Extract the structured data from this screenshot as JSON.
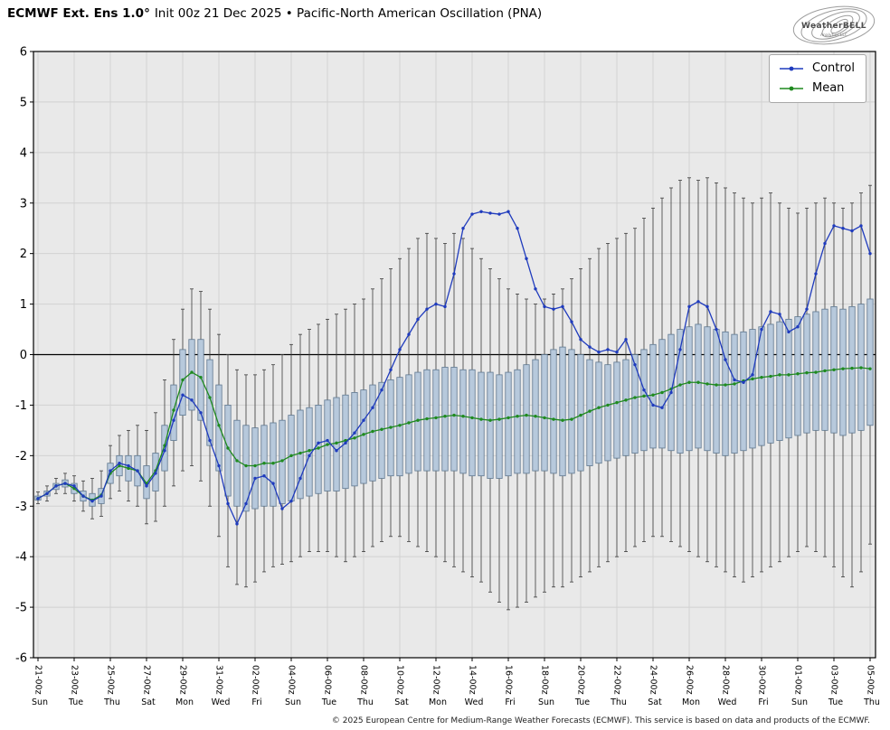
{
  "header": {
    "title_bold": "ECMWF Ext. Ens 1.0°",
    "title_rest": "Init 00z 21 Dec 2025 • Pacific-North American Oscillation (PNA)"
  },
  "logo": {
    "text": "WeatherBELL",
    "subtext": "Analytics LLC"
  },
  "legend": {
    "control_label": "Control",
    "mean_label": "Mean"
  },
  "footer": {
    "copyright": "© 2025 European Centre for Medium-Range Weather Forecasts (ECMWF). This service is based on data and products of the ECMWF."
  },
  "colors": {
    "control": "#1f3bbd",
    "mean": "#1f8a1f",
    "box_fill": "#b7c9dc",
    "box_stroke": "#5f7890",
    "whisker": "#3a3a3a",
    "plot_bg": "#e9e9e9",
    "grid": "#d2d2d2",
    "zero_line": "#000000",
    "frame": "#000000"
  },
  "chart_data": {
    "type": "line",
    "subtype": "ensemble-box-whisker-timeseries",
    "title": "ECMWF Ext. Ens 1.0° Init 00z 21 Dec 2025 • Pacific-North American Oscillation (PNA)",
    "xlabel": "",
    "ylabel": "",
    "ylim": [
      -6,
      6
    ],
    "y_ticks": [
      -6,
      -5,
      -4,
      -3,
      -2,
      -1,
      0,
      1,
      2,
      3,
      4,
      5,
      6
    ],
    "x_step_hours": 12,
    "grid": true,
    "legend_position": "upper right",
    "x_tick_positions": [
      0,
      4,
      8,
      12,
      16,
      20,
      24,
      28,
      32,
      36,
      40,
      44,
      48,
      52,
      56,
      60,
      64,
      68,
      72,
      76,
      80,
      84,
      88,
      92
    ],
    "x_tick_labels": [
      "21-00z",
      "23-00z",
      "25-00z",
      "27-00z",
      "29-00z",
      "31-00z",
      "02-00z",
      "04-00z",
      "06-00z",
      "08-00z",
      "10-00z",
      "12-00z",
      "14-00z",
      "16-00z",
      "18-00z",
      "20-00z",
      "22-00z",
      "24-00z",
      "26-00z",
      "28-00z",
      "30-00z",
      "01-00z",
      "03-00z",
      "05-00z"
    ],
    "x_tick_weekdays": [
      "Sun",
      "Tue",
      "Thu",
      "Sat",
      "Mon",
      "Wed",
      "Fri",
      "Sun",
      "Tue",
      "Thu",
      "Sat",
      "Mon",
      "Wed",
      "Fri",
      "Sun",
      "Tue",
      "Thu",
      "Sat",
      "Mon",
      "Wed",
      "Fri",
      "Sun",
      "Tue",
      "Thu"
    ],
    "series": [
      {
        "name": "Control",
        "values": [
          -2.85,
          -2.75,
          -2.6,
          -2.55,
          -2.6,
          -2.8,
          -2.9,
          -2.8,
          -2.3,
          -2.15,
          -2.2,
          -2.3,
          -2.6,
          -2.35,
          -1.9,
          -1.3,
          -0.8,
          -0.9,
          -1.15,
          -1.7,
          -2.2,
          -2.95,
          -3.35,
          -2.95,
          -2.45,
          -2.4,
          -2.55,
          -3.05,
          -2.9,
          -2.45,
          -2.0,
          -1.75,
          -1.7,
          -1.9,
          -1.75,
          -1.55,
          -1.3,
          -1.05,
          -0.7,
          -0.3,
          0.1,
          0.4,
          0.7,
          0.9,
          1.0,
          0.95,
          1.6,
          2.5,
          2.78,
          2.83,
          2.8,
          2.78,
          2.83,
          2.5,
          1.9,
          1.3,
          0.95,
          0.9,
          0.95,
          0.65,
          0.3,
          0.15,
          0.05,
          0.1,
          0.05,
          0.3,
          -0.2,
          -0.7,
          -1.0,
          -1.05,
          -0.75,
          0.1,
          0.95,
          1.05,
          0.95,
          0.5,
          -0.1,
          -0.5,
          -0.55,
          -0.4,
          0.5,
          0.85,
          0.8,
          0.45,
          0.55,
          0.9,
          1.6,
          2.2,
          2.55,
          2.5,
          2.45,
          2.55,
          2.0
        ]
      },
      {
        "name": "Mean",
        "values": [
          -2.85,
          -2.75,
          -2.6,
          -2.55,
          -2.65,
          -2.8,
          -2.88,
          -2.78,
          -2.35,
          -2.2,
          -2.25,
          -2.3,
          -2.55,
          -2.3,
          -1.8,
          -1.1,
          -0.5,
          -0.35,
          -0.45,
          -0.85,
          -1.4,
          -1.85,
          -2.1,
          -2.2,
          -2.2,
          -2.15,
          -2.15,
          -2.1,
          -2.0,
          -1.95,
          -1.9,
          -1.85,
          -1.78,
          -1.75,
          -1.7,
          -1.65,
          -1.58,
          -1.52,
          -1.48,
          -1.44,
          -1.4,
          -1.35,
          -1.3,
          -1.27,
          -1.25,
          -1.22,
          -1.2,
          -1.22,
          -1.25,
          -1.28,
          -1.3,
          -1.28,
          -1.25,
          -1.22,
          -1.2,
          -1.22,
          -1.25,
          -1.28,
          -1.3,
          -1.28,
          -1.2,
          -1.12,
          -1.05,
          -1.0,
          -0.95,
          -0.9,
          -0.85,
          -0.82,
          -0.8,
          -0.75,
          -0.68,
          -0.6,
          -0.55,
          -0.55,
          -0.58,
          -0.6,
          -0.6,
          -0.58,
          -0.52,
          -0.48,
          -0.45,
          -0.43,
          -0.4,
          -0.4,
          -0.38,
          -0.36,
          -0.35,
          -0.32,
          -0.3,
          -0.28,
          -0.27,
          -0.26,
          -0.28
        ]
      }
    ],
    "boxes": {
      "low": [
        -2.95,
        -2.9,
        -2.75,
        -2.75,
        -2.9,
        -3.1,
        -3.25,
        -3.2,
        -2.85,
        -2.7,
        -2.9,
        -3.0,
        -3.35,
        -3.3,
        -3.0,
        -2.6,
        -2.3,
        -2.2,
        -2.5,
        -3.0,
        -3.6,
        -4.2,
        -4.55,
        -4.6,
        -4.5,
        -4.3,
        -4.2,
        -4.15,
        -4.1,
        -4.0,
        -3.9,
        -3.9,
        -3.9,
        -4.0,
        -4.1,
        -4.0,
        -3.9,
        -3.8,
        -3.7,
        -3.6,
        -3.6,
        -3.7,
        -3.8,
        -3.9,
        -4.0,
        -4.1,
        -4.2,
        -4.3,
        -4.4,
        -4.5,
        -4.7,
        -4.9,
        -5.05,
        -5.0,
        -4.9,
        -4.8,
        -4.7,
        -4.6,
        -4.6,
        -4.5,
        -4.4,
        -4.3,
        -4.2,
        -4.1,
        -4.0,
        -3.9,
        -3.8,
        -3.7,
        -3.6,
        -3.6,
        -3.7,
        -3.8,
        -3.9,
        -4.0,
        -4.1,
        -4.2,
        -4.3,
        -4.4,
        -4.5,
        -4.4,
        -4.3,
        -4.2,
        -4.1,
        -4.0,
        -3.9,
        -3.8,
        -3.9,
        -4.0,
        -4.2,
        -4.4,
        -4.6,
        -4.3,
        -3.75
      ],
      "q1": [
        -2.88,
        -2.8,
        -2.67,
        -2.62,
        -2.75,
        -2.9,
        -3.0,
        -2.95,
        -2.55,
        -2.4,
        -2.5,
        -2.6,
        -2.85,
        -2.7,
        -2.3,
        -1.7,
        -1.2,
        -1.1,
        -1.3,
        -1.8,
        -2.3,
        -2.8,
        -3.0,
        -3.1,
        -3.05,
        -3.0,
        -3.0,
        -2.95,
        -2.9,
        -2.85,
        -2.8,
        -2.75,
        -2.7,
        -2.7,
        -2.65,
        -2.6,
        -2.55,
        -2.5,
        -2.45,
        -2.4,
        -2.4,
        -2.35,
        -2.3,
        -2.3,
        -2.3,
        -2.3,
        -2.3,
        -2.35,
        -2.4,
        -2.4,
        -2.45,
        -2.45,
        -2.4,
        -2.35,
        -2.35,
        -2.3,
        -2.3,
        -2.35,
        -2.4,
        -2.35,
        -2.3,
        -2.2,
        -2.15,
        -2.1,
        -2.05,
        -2.0,
        -1.95,
        -1.9,
        -1.85,
        -1.85,
        -1.9,
        -1.95,
        -1.9,
        -1.85,
        -1.9,
        -1.95,
        -2.0,
        -1.95,
        -1.9,
        -1.85,
        -1.8,
        -1.75,
        -1.7,
        -1.65,
        -1.6,
        -1.55,
        -1.5,
        -1.5,
        -1.55,
        -1.6,
        -1.55,
        -1.5,
        -1.4
      ],
      "q3": [
        -2.8,
        -2.7,
        -2.55,
        -2.48,
        -2.55,
        -2.7,
        -2.75,
        -2.65,
        -2.15,
        -2.0,
        -2.0,
        -2.0,
        -2.2,
        -1.95,
        -1.4,
        -0.6,
        0.1,
        0.3,
        0.3,
        -0.1,
        -0.6,
        -1.0,
        -1.3,
        -1.4,
        -1.45,
        -1.4,
        -1.35,
        -1.3,
        -1.2,
        -1.1,
        -1.05,
        -1.0,
        -0.9,
        -0.85,
        -0.8,
        -0.75,
        -0.7,
        -0.6,
        -0.55,
        -0.5,
        -0.45,
        -0.4,
        -0.35,
        -0.3,
        -0.3,
        -0.25,
        -0.25,
        -0.3,
        -0.3,
        -0.35,
        -0.35,
        -0.4,
        -0.35,
        -0.3,
        -0.2,
        -0.1,
        0.0,
        0.1,
        0.15,
        0.1,
        0.0,
        -0.1,
        -0.15,
        -0.2,
        -0.15,
        -0.1,
        0.0,
        0.1,
        0.2,
        0.3,
        0.4,
        0.5,
        0.55,
        0.6,
        0.55,
        0.5,
        0.45,
        0.4,
        0.45,
        0.5,
        0.55,
        0.6,
        0.65,
        0.7,
        0.75,
        0.8,
        0.85,
        0.9,
        0.95,
        0.9,
        0.95,
        1.0,
        1.1
      ],
      "high": [
        -2.72,
        -2.6,
        -2.45,
        -2.35,
        -2.4,
        -2.5,
        -2.45,
        -2.3,
        -1.8,
        -1.6,
        -1.5,
        -1.4,
        -1.5,
        -1.15,
        -0.5,
        0.3,
        0.9,
        1.3,
        1.25,
        0.9,
        0.4,
        0.0,
        -0.3,
        -0.4,
        -0.4,
        -0.3,
        -0.2,
        0.0,
        0.2,
        0.4,
        0.5,
        0.6,
        0.7,
        0.8,
        0.9,
        1.0,
        1.1,
        1.3,
        1.5,
        1.7,
        1.9,
        2.1,
        2.3,
        2.4,
        2.3,
        2.2,
        2.4,
        2.3,
        2.1,
        1.9,
        1.7,
        1.5,
        1.3,
        1.2,
        1.1,
        1.0,
        1.1,
        1.2,
        1.3,
        1.5,
        1.7,
        1.9,
        2.1,
        2.2,
        2.3,
        2.4,
        2.5,
        2.7,
        2.9,
        3.1,
        3.3,
        3.45,
        3.5,
        3.45,
        3.5,
        3.4,
        3.3,
        3.2,
        3.1,
        3.0,
        3.1,
        3.2,
        3.0,
        2.9,
        2.8,
        2.9,
        3.0,
        3.1,
        3.0,
        2.9,
        3.0,
        3.2,
        3.35
      ]
    }
  }
}
